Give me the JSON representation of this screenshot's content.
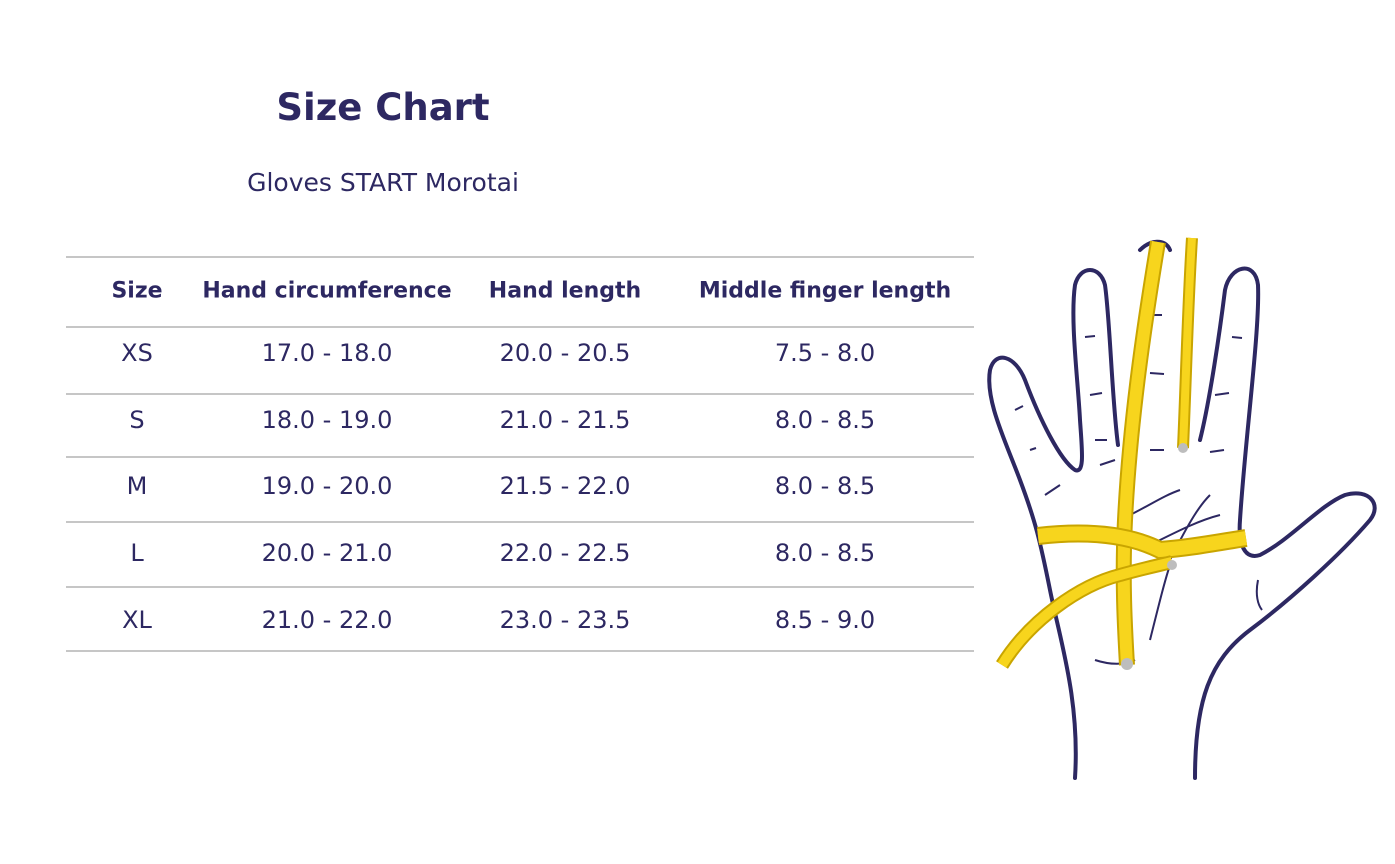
{
  "header": {
    "title": "Size Chart",
    "subtitle": "Gloves START Morotai"
  },
  "table": {
    "columns": [
      "Size",
      "Hand circumference",
      "Hand length",
      "Middle finger length"
    ],
    "rows": [
      [
        "XS",
        "17.0 - 18.0",
        "20.0 - 20.5",
        "7.5 - 8.0"
      ],
      [
        "S",
        "18.0 - 19.0",
        "21.0 - 21.5",
        "8.0 - 8.5"
      ],
      [
        "M",
        "19.0 - 20.0",
        "21.5 - 22.0",
        "8.0 - 8.5"
      ],
      [
        "L",
        "20.0 - 21.0",
        "22.0 - 22.5",
        "8.0 - 8.5"
      ],
      [
        "XL",
        "21.0 - 22.0",
        "23.0 - 23.5",
        "8.5 - 9.0"
      ]
    ]
  }
}
